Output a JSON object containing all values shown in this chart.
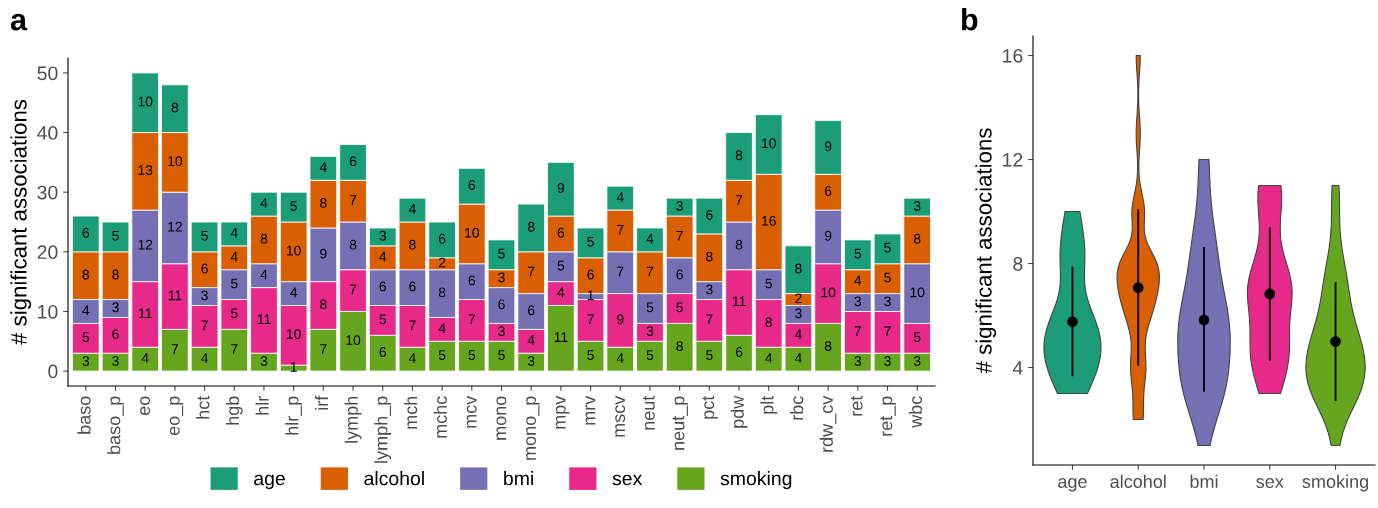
{
  "chart_data": [
    {
      "type": "bar",
      "stacked": true,
      "annotations": [
        "a"
      ],
      "ylabel": "# significant associations",
      "categories": [
        "baso",
        "baso_p",
        "eo",
        "eo_p",
        "hct",
        "hgb",
        "hlr",
        "hlr_p",
        "irf",
        "lymph",
        "lymph_p",
        "mch",
        "mchc",
        "mcv",
        "mono",
        "mono_p",
        "mpv",
        "mrv",
        "mscv",
        "neut",
        "neut_p",
        "pct",
        "pdw",
        "plt",
        "rbc",
        "rdw_cv",
        "ret",
        "ret_p",
        "wbc"
      ],
      "series": [
        {
          "name": "smoking",
          "color": "#66a61e",
          "values": [
            3,
            3,
            4,
            7,
            4,
            7,
            3,
            1,
            7,
            10,
            6,
            4,
            5,
            5,
            5,
            3,
            11,
            5,
            4,
            5,
            8,
            5,
            6,
            4,
            4,
            8,
            3,
            3,
            3
          ]
        },
        {
          "name": "sex",
          "color": "#e7298a",
          "values": [
            5,
            6,
            11,
            11,
            7,
            5,
            11,
            10,
            8,
            7,
            5,
            7,
            4,
            7,
            3,
            4,
            4,
            7,
            9,
            3,
            5,
            7,
            11,
            8,
            4,
            10,
            7,
            7,
            5
          ]
        },
        {
          "name": "bmi",
          "color": "#7570b3",
          "values": [
            4,
            3,
            12,
            12,
            3,
            5,
            4,
            4,
            9,
            8,
            6,
            6,
            8,
            6,
            6,
            6,
            5,
            1,
            7,
            5,
            6,
            3,
            8,
            5,
            3,
            9,
            3,
            3,
            10
          ]
        },
        {
          "name": "alcohol",
          "color": "#d95f02",
          "values": [
            8,
            8,
            13,
            10,
            6,
            4,
            8,
            10,
            8,
            7,
            4,
            8,
            2,
            10,
            3,
            7,
            6,
            6,
            7,
            7,
            7,
            8,
            7,
            16,
            2,
            6,
            4,
            5,
            8
          ]
        },
        {
          "name": "age",
          "color": "#1b9e77",
          "values": [
            6,
            5,
            10,
            8,
            5,
            4,
            4,
            5,
            4,
            6,
            3,
            4,
            6,
            6,
            5,
            8,
            9,
            5,
            4,
            4,
            3,
            6,
            8,
            10,
            8,
            9,
            5,
            5,
            3
          ]
        }
      ],
      "data_labels": true,
      "ylim": [
        -2.5,
        52.5
      ],
      "yticks": [
        0,
        10,
        20,
        30,
        40,
        50
      ],
      "grid": false,
      "legend": "bottom"
    },
    {
      "type": "scatter",
      "annotations": [
        "b"
      ],
      "ylabel": "# significant associations",
      "categories": [
        "age",
        "alcohol",
        "bmi",
        "sex",
        "smoking"
      ],
      "colors": [
        "#1b9e77",
        "#d95f02",
        "#7570b3",
        "#e7298a",
        "#66a61e"
      ],
      "series": [
        {
          "color": "#000000",
          "values": [
            5.76,
            7.07,
            5.83,
            6.83,
            5.0
          ],
          "errors": [
            [
              3.7,
              7.85
            ],
            [
              4.1,
              10.05
            ],
            [
              3.1,
              8.6
            ],
            [
              4.3,
              9.35
            ],
            [
              2.75,
              7.25
            ]
          ]
        }
      ],
      "ylim": [
        0.25,
        16.75
      ],
      "yticks": [
        4,
        8,
        12,
        16
      ],
      "grid": false,
      "marker": "circle"
    }
  ]
}
